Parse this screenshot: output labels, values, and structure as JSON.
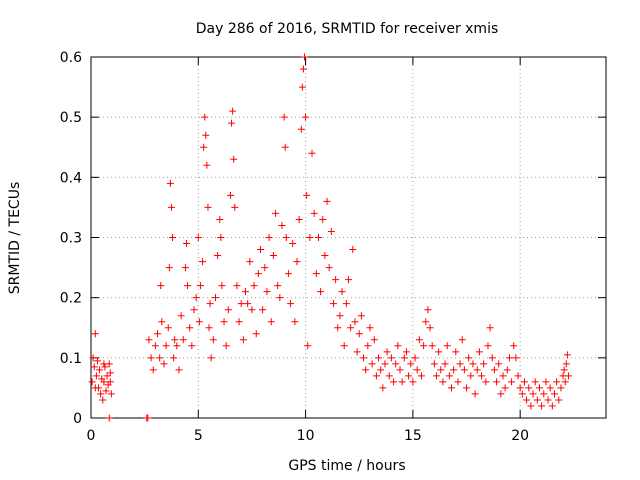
{
  "chart_data": {
    "type": "scatter",
    "title": "Day 286 of 2016, SRMTID for receiver xmis",
    "xlabel": "GPS time / hours",
    "ylabel": "SRMTID / TECUs",
    "xlim": [
      0,
      24
    ],
    "ylim": [
      0,
      0.6
    ],
    "x_ticks": [
      0,
      5,
      10,
      15,
      20
    ],
    "x_tick_labels": [
      "0",
      "5",
      "10",
      "15",
      "20"
    ],
    "y_ticks": [
      0,
      0.1,
      0.2,
      0.3,
      0.4,
      0.5,
      0.6
    ],
    "y_tick_labels": [
      "0",
      "0.1",
      "0.2",
      "0.3",
      "0.4",
      "0.5",
      "0.6"
    ],
    "grid": true,
    "marker": "+",
    "color": "#ff0000",
    "series": [
      {
        "name": "SRMTID",
        "points": [
          [
            0.05,
            0.06
          ],
          [
            0.1,
            0.1
          ],
          [
            0.15,
            0.085
          ],
          [
            0.2,
            0.14
          ],
          [
            0.25,
            0.07
          ],
          [
            0.3,
            0.095
          ],
          [
            0.35,
            0.05
          ],
          [
            0.4,
            0.08
          ],
          [
            0.45,
            0.04
          ],
          [
            0.5,
            0.065
          ],
          [
            0.55,
            0.03
          ],
          [
            0.6,
            0.06
          ],
          [
            0.65,
            0.085
          ],
          [
            0.7,
            0.045
          ],
          [
            0.75,
            0.07
          ],
          [
            0.8,
            0.055
          ],
          [
            0.85,
            0.09
          ],
          [
            0.9,
            0.06
          ],
          [
            0.95,
            0.04
          ],
          [
            0.2,
            0.05
          ],
          [
            0.6,
            0.09
          ],
          [
            0.9,
            0.075
          ],
          [
            0.85,
            0.0
          ],
          [
            2.6,
            0.0
          ],
          [
            2.65,
            0.0
          ],
          [
            2.7,
            0.13
          ],
          [
            2.8,
            0.1
          ],
          [
            2.9,
            0.08
          ],
          [
            3.0,
            0.12
          ],
          [
            3.1,
            0.14
          ],
          [
            3.2,
            0.1
          ],
          [
            3.25,
            0.22
          ],
          [
            3.3,
            0.16
          ],
          [
            3.4,
            0.09
          ],
          [
            3.5,
            0.12
          ],
          [
            3.6,
            0.15
          ],
          [
            3.65,
            0.25
          ],
          [
            3.7,
            0.39
          ],
          [
            3.75,
            0.35
          ],
          [
            3.8,
            0.3
          ],
          [
            3.85,
            0.1
          ],
          [
            3.9,
            0.13
          ],
          [
            4.0,
            0.12
          ],
          [
            4.1,
            0.08
          ],
          [
            4.2,
            0.17
          ],
          [
            4.3,
            0.13
          ],
          [
            4.4,
            0.25
          ],
          [
            4.45,
            0.29
          ],
          [
            4.5,
            0.22
          ],
          [
            4.6,
            0.15
          ],
          [
            4.7,
            0.12
          ],
          [
            4.8,
            0.18
          ],
          [
            4.9,
            0.2
          ],
          [
            5.0,
            0.3
          ],
          [
            5.05,
            0.16
          ],
          [
            5.1,
            0.22
          ],
          [
            5.2,
            0.26
          ],
          [
            5.25,
            0.45
          ],
          [
            5.3,
            0.5
          ],
          [
            5.35,
            0.47
          ],
          [
            5.4,
            0.42
          ],
          [
            5.45,
            0.35
          ],
          [
            5.5,
            0.15
          ],
          [
            5.55,
            0.19
          ],
          [
            5.6,
            0.1
          ],
          [
            5.7,
            0.13
          ],
          [
            5.8,
            0.2
          ],
          [
            5.9,
            0.27
          ],
          [
            6.0,
            0.33
          ],
          [
            6.05,
            0.3
          ],
          [
            6.1,
            0.22
          ],
          [
            6.2,
            0.16
          ],
          [
            6.3,
            0.12
          ],
          [
            6.4,
            0.18
          ],
          [
            6.5,
            0.37
          ],
          [
            6.55,
            0.49
          ],
          [
            6.6,
            0.51
          ],
          [
            6.65,
            0.43
          ],
          [
            6.7,
            0.35
          ],
          [
            6.8,
            0.22
          ],
          [
            6.9,
            0.16
          ],
          [
            7.0,
            0.19
          ],
          [
            7.1,
            0.13
          ],
          [
            7.2,
            0.21
          ],
          [
            7.3,
            0.19
          ],
          [
            7.4,
            0.26
          ],
          [
            7.5,
            0.18
          ],
          [
            7.6,
            0.22
          ],
          [
            7.7,
            0.14
          ],
          [
            7.8,
            0.24
          ],
          [
            7.9,
            0.28
          ],
          [
            8.0,
            0.18
          ],
          [
            8.1,
            0.25
          ],
          [
            8.2,
            0.21
          ],
          [
            8.3,
            0.3
          ],
          [
            8.4,
            0.16
          ],
          [
            8.5,
            0.27
          ],
          [
            8.6,
            0.34
          ],
          [
            8.7,
            0.22
          ],
          [
            8.8,
            0.2
          ],
          [
            8.9,
            0.32
          ],
          [
            9.0,
            0.5
          ],
          [
            9.05,
            0.45
          ],
          [
            9.1,
            0.3
          ],
          [
            9.2,
            0.24
          ],
          [
            9.3,
            0.19
          ],
          [
            9.4,
            0.29
          ],
          [
            9.5,
            0.16
          ],
          [
            9.6,
            0.26
          ],
          [
            9.7,
            0.33
          ],
          [
            9.8,
            0.48
          ],
          [
            9.85,
            0.55
          ],
          [
            9.9,
            0.58
          ],
          [
            9.95,
            0.6
          ],
          [
            10.0,
            0.5
          ],
          [
            10.05,
            0.37
          ],
          [
            10.1,
            0.12
          ],
          [
            10.2,
            0.3
          ],
          [
            10.3,
            0.44
          ],
          [
            10.4,
            0.34
          ],
          [
            10.5,
            0.24
          ],
          [
            10.6,
            0.3
          ],
          [
            10.7,
            0.21
          ],
          [
            10.8,
            0.33
          ],
          [
            10.9,
            0.27
          ],
          [
            11.0,
            0.36
          ],
          [
            11.1,
            0.25
          ],
          [
            11.2,
            0.31
          ],
          [
            11.3,
            0.19
          ],
          [
            11.4,
            0.23
          ],
          [
            11.5,
            0.15
          ],
          [
            11.6,
            0.17
          ],
          [
            11.7,
            0.21
          ],
          [
            11.8,
            0.12
          ],
          [
            11.9,
            0.19
          ],
          [
            12.0,
            0.23
          ],
          [
            12.1,
            0.15
          ],
          [
            12.2,
            0.28
          ],
          [
            12.3,
            0.16
          ],
          [
            12.4,
            0.11
          ],
          [
            12.5,
            0.14
          ],
          [
            12.6,
            0.17
          ],
          [
            12.7,
            0.1
          ],
          [
            12.8,
            0.08
          ],
          [
            12.9,
            0.12
          ],
          [
            13.0,
            0.15
          ],
          [
            13.1,
            0.09
          ],
          [
            13.2,
            0.13
          ],
          [
            13.3,
            0.07
          ],
          [
            13.4,
            0.1
          ],
          [
            13.5,
            0.08
          ],
          [
            13.6,
            0.05
          ],
          [
            13.7,
            0.09
          ],
          [
            13.8,
            0.11
          ],
          [
            13.9,
            0.07
          ],
          [
            14.0,
            0.1
          ],
          [
            14.1,
            0.06
          ],
          [
            14.2,
            0.09
          ],
          [
            14.3,
            0.12
          ],
          [
            14.4,
            0.08
          ],
          [
            14.5,
            0.06
          ],
          [
            14.6,
            0.1
          ],
          [
            14.7,
            0.11
          ],
          [
            14.8,
            0.07
          ],
          [
            14.9,
            0.09
          ],
          [
            15.0,
            0.06
          ],
          [
            15.1,
            0.1
          ],
          [
            15.2,
            0.08
          ],
          [
            15.3,
            0.13
          ],
          [
            15.4,
            0.07
          ],
          [
            15.5,
            0.12
          ],
          [
            15.6,
            0.16
          ],
          [
            15.7,
            0.18
          ],
          [
            15.8,
            0.15
          ],
          [
            15.9,
            0.12
          ],
          [
            16.0,
            0.09
          ],
          [
            16.1,
            0.07
          ],
          [
            16.2,
            0.11
          ],
          [
            16.3,
            0.08
          ],
          [
            16.4,
            0.06
          ],
          [
            16.5,
            0.09
          ],
          [
            16.6,
            0.12
          ],
          [
            16.7,
            0.07
          ],
          [
            16.8,
            0.05
          ],
          [
            16.9,
            0.08
          ],
          [
            17.0,
            0.11
          ],
          [
            17.1,
            0.06
          ],
          [
            17.2,
            0.09
          ],
          [
            17.3,
            0.13
          ],
          [
            17.4,
            0.08
          ],
          [
            17.5,
            0.05
          ],
          [
            17.6,
            0.1
          ],
          [
            17.7,
            0.07
          ],
          [
            17.8,
            0.09
          ],
          [
            17.9,
            0.04
          ],
          [
            18.0,
            0.08
          ],
          [
            18.1,
            0.11
          ],
          [
            18.2,
            0.07
          ],
          [
            18.3,
            0.09
          ],
          [
            18.4,
            0.06
          ],
          [
            18.5,
            0.12
          ],
          [
            18.6,
            0.15
          ],
          [
            18.7,
            0.1
          ],
          [
            18.8,
            0.08
          ],
          [
            18.9,
            0.06
          ],
          [
            19.0,
            0.09
          ],
          [
            19.1,
            0.04
          ],
          [
            19.2,
            0.07
          ],
          [
            19.3,
            0.05
          ],
          [
            19.4,
            0.08
          ],
          [
            19.5,
            0.1
          ],
          [
            19.6,
            0.06
          ],
          [
            19.7,
            0.12
          ],
          [
            19.8,
            0.1
          ],
          [
            19.9,
            0.07
          ],
          [
            20.0,
            0.05
          ],
          [
            20.1,
            0.04
          ],
          [
            20.2,
            0.06
          ],
          [
            20.3,
            0.03
          ],
          [
            20.4,
            0.05
          ],
          [
            20.5,
            0.02
          ],
          [
            20.6,
            0.04
          ],
          [
            20.7,
            0.06
          ],
          [
            20.8,
            0.03
          ],
          [
            20.9,
            0.05
          ],
          [
            21.0,
            0.02
          ],
          [
            21.1,
            0.04
          ],
          [
            21.2,
            0.06
          ],
          [
            21.3,
            0.03
          ],
          [
            21.4,
            0.05
          ],
          [
            21.5,
            0.02
          ],
          [
            21.6,
            0.04
          ],
          [
            21.7,
            0.06
          ],
          [
            21.8,
            0.03
          ],
          [
            21.9,
            0.05
          ],
          [
            22.0,
            0.07
          ],
          [
            22.05,
            0.08
          ],
          [
            22.1,
            0.06
          ],
          [
            22.15,
            0.09
          ],
          [
            22.2,
            0.105
          ],
          [
            22.25,
            0.07
          ]
        ]
      }
    ]
  }
}
